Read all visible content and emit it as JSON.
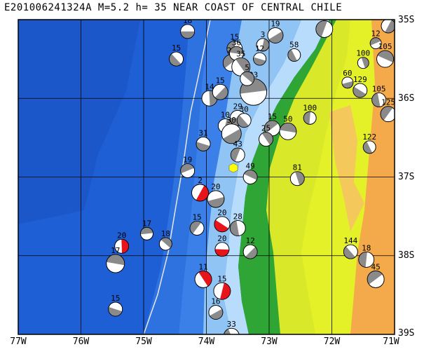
{
  "title": "E201006241324A M=5.2 h= 35 NEAR COAST OF CENTRAL CHILE",
  "axes": {
    "x_ticks": [
      "77W",
      "76W",
      "75W",
      "74W",
      "73W",
      "72W",
      "71W"
    ],
    "y_ticks": [
      "35S",
      "36S",
      "37S",
      "38S",
      "39S"
    ],
    "lon_range": [
      -77,
      -71
    ],
    "lat_range": [
      -39,
      -35
    ]
  },
  "colors": {
    "ocean_deep": "#1e5fd6",
    "ocean_mid": "#3a80e8",
    "shelf": "#8fc4f5",
    "shelf_light": "#b8dcfb",
    "lowland": "#2fa535",
    "land_mid": "#e4f028",
    "land_high": "#f4aa4a",
    "mech_fill": "#8a8a8a",
    "mech_highlight": "#e8141c",
    "trench_line": "#e6e6e6",
    "epicenter": "#ffff00"
  },
  "events": [
    {
      "label": "18",
      "lon": -74.3,
      "lat": -35.15,
      "size": 10,
      "highlight": false
    },
    {
      "label": "15",
      "lon": -74.48,
      "lat": -35.5,
      "size": 10,
      "highlight": false
    },
    {
      "label": "15",
      "lon": -73.55,
      "lat": -35.37,
      "size": 11,
      "highlight": false
    },
    {
      "label": "22",
      "lon": -73.6,
      "lat": -35.55,
      "size": 12,
      "highlight": false
    },
    {
      "label": "36",
      "lon": -73.52,
      "lat": -35.43,
      "size": 10,
      "highlight": false
    },
    {
      "label": "35",
      "lon": -73.45,
      "lat": -35.6,
      "size": 13,
      "highlight": false
    },
    {
      "label": "3",
      "lon": -73.1,
      "lat": -35.32,
      "size": 9,
      "highlight": false
    },
    {
      "label": "19",
      "lon": -72.9,
      "lat": -35.2,
      "size": 11,
      "highlight": false
    },
    {
      "label": "12",
      "lon": -73.15,
      "lat": -35.5,
      "size": 9,
      "highlight": false
    },
    {
      "label": "58",
      "lon": -72.6,
      "lat": -35.45,
      "size": 9,
      "highlight": false
    },
    {
      "label": "55",
      "lon": -72.12,
      "lat": -35.12,
      "size": 12,
      "highlight": false
    },
    {
      "label": "12",
      "lon": -71.3,
      "lat": -35.3,
      "size": 8,
      "highlight": false
    },
    {
      "label": "105",
      "lon": -71.15,
      "lat": -35.5,
      "size": 12,
      "highlight": false
    },
    {
      "label": "100",
      "lon": -71.5,
      "lat": -35.55,
      "size": 8,
      "highlight": false
    },
    {
      "label": "15",
      "lon": -71.1,
      "lat": -35.08,
      "size": 10,
      "highlight": false
    },
    {
      "label": "60",
      "lon": -71.75,
      "lat": -35.8,
      "size": 8,
      "highlight": false
    },
    {
      "label": "129",
      "lon": -71.55,
      "lat": -35.9,
      "size": 10,
      "highlight": false
    },
    {
      "label": "105",
      "lon": -71.25,
      "lat": -36.02,
      "size": 10,
      "highlight": false
    },
    {
      "label": "125",
      "lon": -71.1,
      "lat": -36.2,
      "size": 11,
      "highlight": false
    },
    {
      "label": "23",
      "lon": -73.25,
      "lat": -35.92,
      "size": 19,
      "highlight": false
    },
    {
      "label": "5",
      "lon": -73.35,
      "lat": -35.75,
      "size": 10,
      "highlight": false
    },
    {
      "label": "14",
      "lon": -73.95,
      "lat": -36.0,
      "size": 11,
      "highlight": false
    },
    {
      "label": "15",
      "lon": -73.78,
      "lat": -35.92,
      "size": 11,
      "highlight": false
    },
    {
      "label": "29",
      "lon": -73.5,
      "lat": -36.25,
      "size": 11,
      "highlight": false
    },
    {
      "label": "30",
      "lon": -73.4,
      "lat": -36.28,
      "size": 10,
      "highlight": false
    },
    {
      "label": "100",
      "lon": -72.35,
      "lat": -36.25,
      "size": 9,
      "highlight": false
    },
    {
      "label": "15",
      "lon": -72.95,
      "lat": -36.38,
      "size": 11,
      "highlight": false
    },
    {
      "label": "50",
      "lon": -72.7,
      "lat": -36.42,
      "size": 12,
      "highlight": false
    },
    {
      "label": "25",
      "lon": -73.05,
      "lat": -36.52,
      "size": 10,
      "highlight": false
    },
    {
      "label": "10",
      "lon": -73.7,
      "lat": -36.35,
      "size": 10,
      "highlight": false
    },
    {
      "label": "30",
      "lon": -73.6,
      "lat": -36.45,
      "size": 14,
      "highlight": false
    },
    {
      "label": "31",
      "lon": -74.05,
      "lat": -36.58,
      "size": 10,
      "highlight": false
    },
    {
      "label": "122",
      "lon": -71.4,
      "lat": -36.62,
      "size": 9,
      "highlight": false
    },
    {
      "label": "43",
      "lon": -73.5,
      "lat": -36.72,
      "size": 10,
      "highlight": false
    },
    {
      "label": "19",
      "lon": -74.3,
      "lat": -36.92,
      "size": 10,
      "highlight": false
    },
    {
      "label": "49",
      "lon": -73.3,
      "lat": -37.0,
      "size": 10,
      "highlight": false
    },
    {
      "label": "81",
      "lon": -72.55,
      "lat": -37.02,
      "size": 10,
      "highlight": false
    },
    {
      "label": "2",
      "lon": -74.1,
      "lat": -37.2,
      "size": 12,
      "highlight": true
    },
    {
      "label": "20",
      "lon": -73.85,
      "lat": -37.28,
      "size": 12,
      "highlight": false
    },
    {
      "label": "20",
      "lon": -73.75,
      "lat": -37.6,
      "size": 11,
      "highlight": true
    },
    {
      "label": "28",
      "lon": -73.5,
      "lat": -37.65,
      "size": 11,
      "highlight": false
    },
    {
      "label": "15",
      "lon": -74.15,
      "lat": -37.65,
      "size": 10,
      "highlight": false
    },
    {
      "label": "17",
      "lon": -74.95,
      "lat": -37.72,
      "size": 9,
      "highlight": false
    },
    {
      "label": "18",
      "lon": -74.65,
      "lat": -37.85,
      "size": 9,
      "highlight": false
    },
    {
      "label": "20",
      "lon": -75.35,
      "lat": -37.88,
      "size": 10,
      "highlight": true
    },
    {
      "label": "12",
      "lon": -73.3,
      "lat": -37.95,
      "size": 10,
      "highlight": false
    },
    {
      "label": "20",
      "lon": -73.75,
      "lat": -37.92,
      "size": 10,
      "highlight": true
    },
    {
      "label": "144",
      "lon": -71.7,
      "lat": -37.95,
      "size": 10,
      "highlight": false
    },
    {
      "label": "18",
      "lon": -71.45,
      "lat": -38.05,
      "size": 11,
      "highlight": false
    },
    {
      "label": "45",
      "lon": -71.3,
      "lat": -38.3,
      "size": 12,
      "highlight": false
    },
    {
      "label": "17",
      "lon": -75.45,
      "lat": -38.1,
      "size": 13,
      "highlight": false
    },
    {
      "label": "11",
      "lon": -74.05,
      "lat": -38.3,
      "size": 12,
      "highlight": true
    },
    {
      "label": "15",
      "lon": -73.75,
      "lat": -38.45,
      "size": 12,
      "highlight": true
    },
    {
      "label": "16",
      "lon": -73.85,
      "lat": -38.72,
      "size": 10,
      "highlight": false
    },
    {
      "label": "15",
      "lon": -75.45,
      "lat": -38.68,
      "size": 10,
      "highlight": false
    },
    {
      "label": "33",
      "lon": -73.6,
      "lat": -39.02,
      "size": 11,
      "highlight": false
    }
  ]
}
